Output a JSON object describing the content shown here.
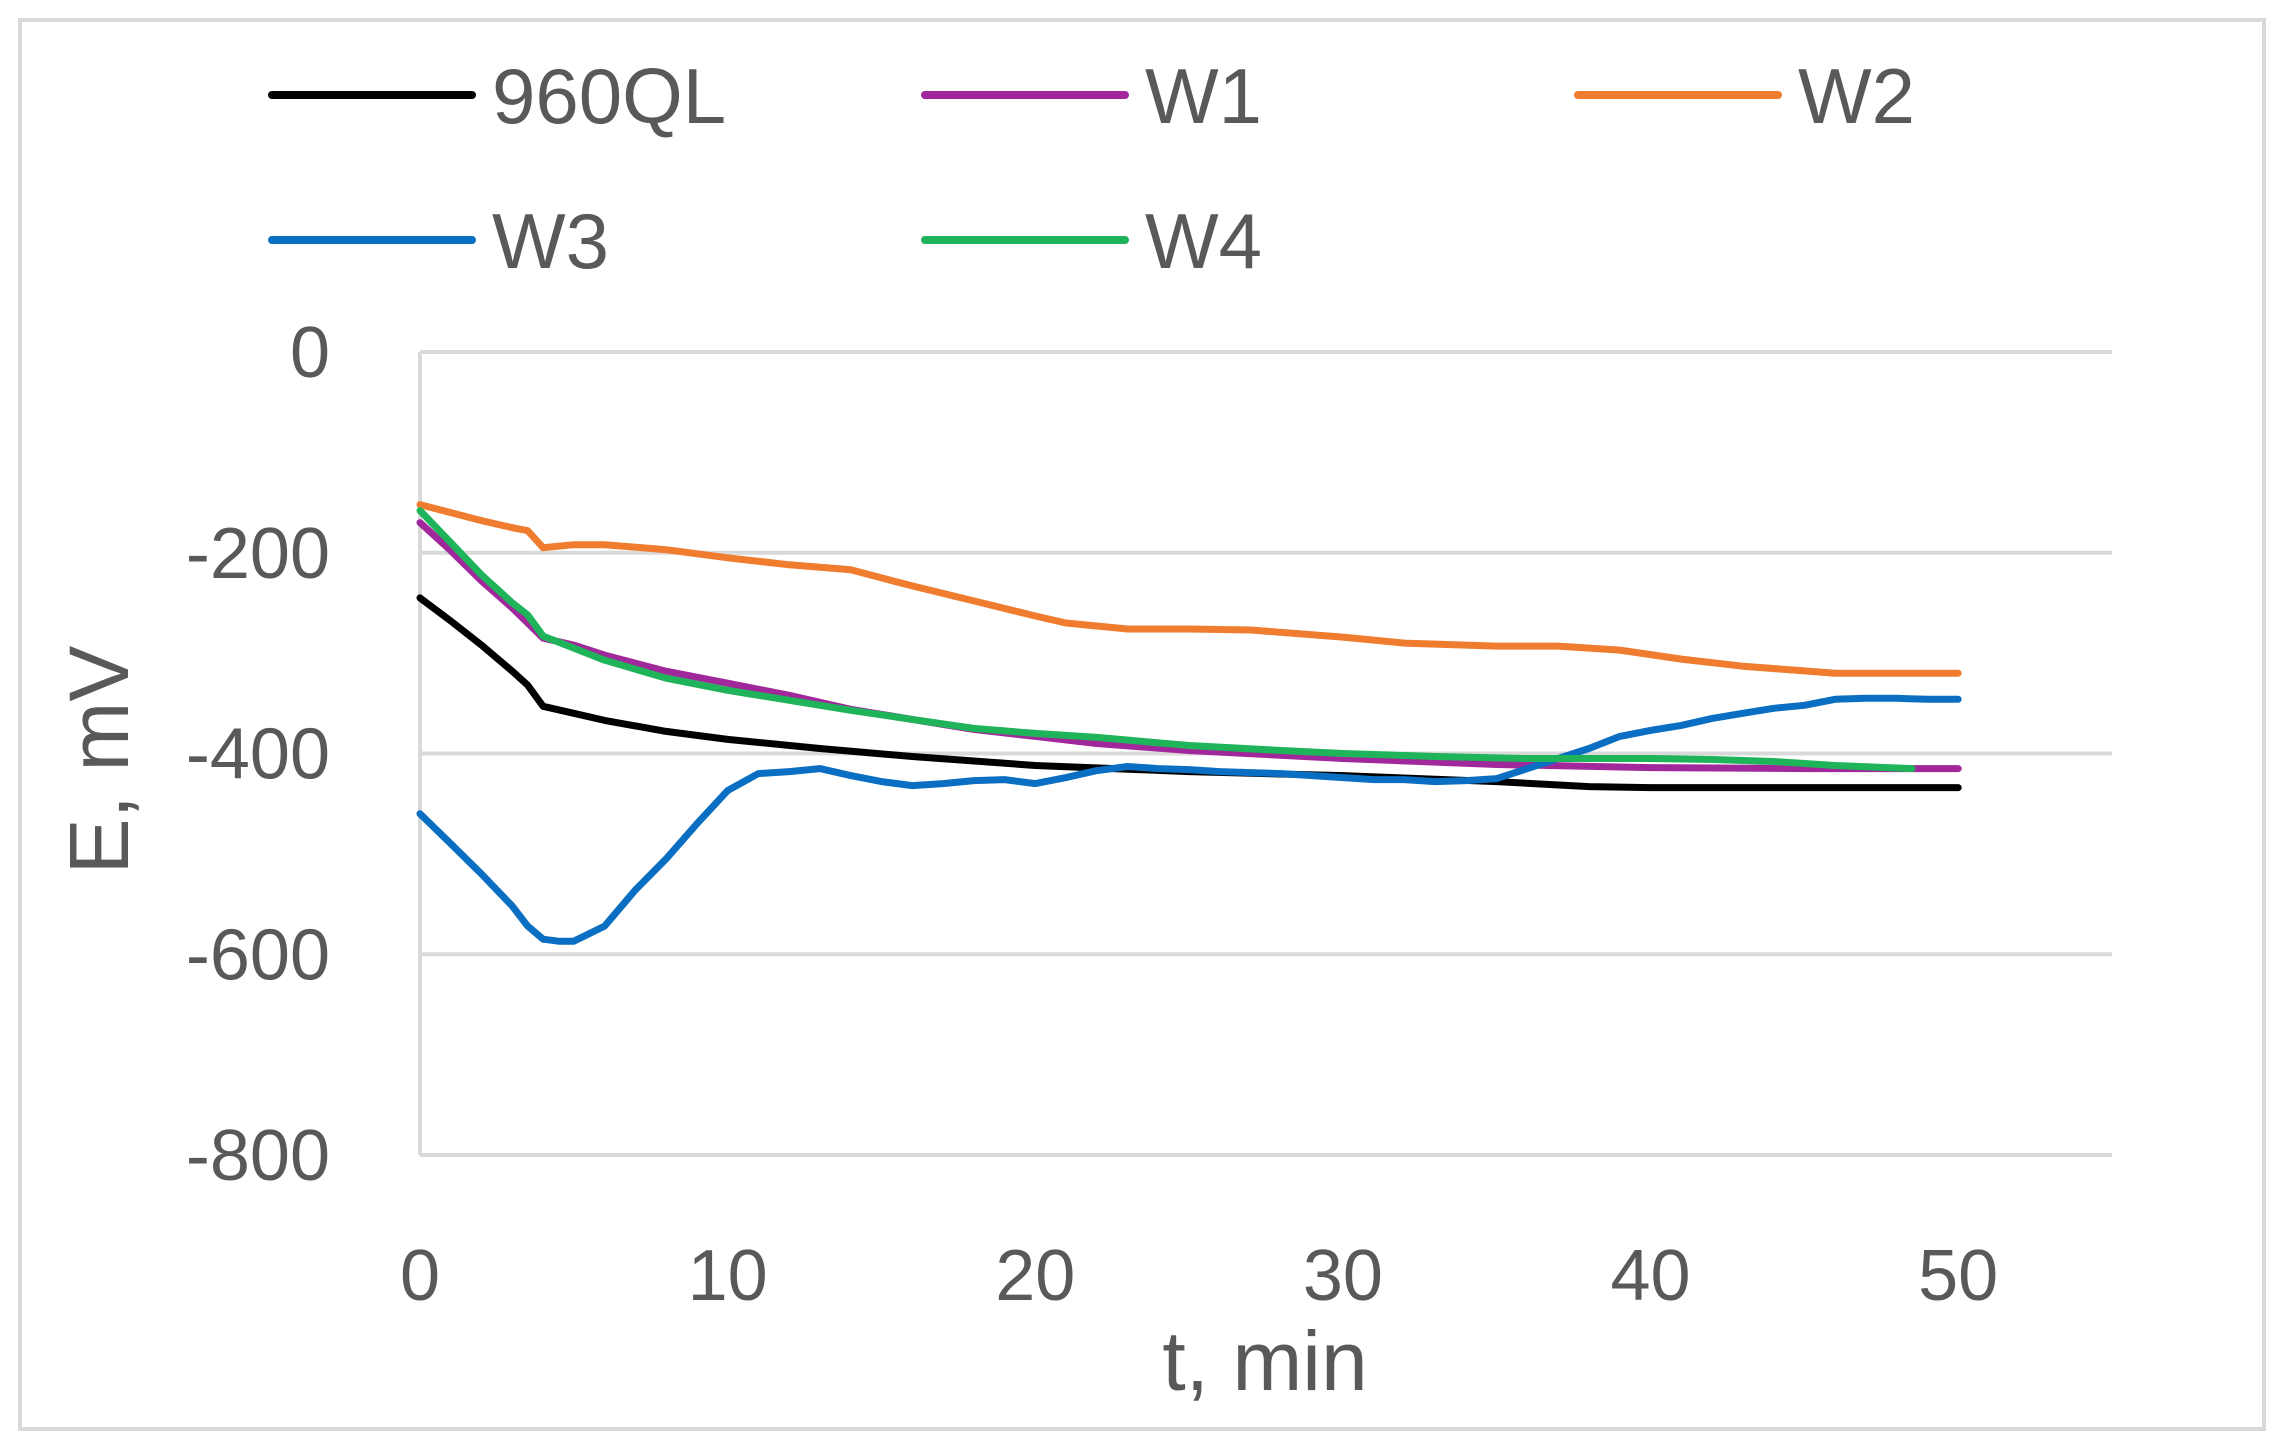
{
  "chart_data": {
    "type": "line",
    "title": "",
    "xlabel": "t, min",
    "ylabel": "E, mV",
    "xlim": [
      0,
      55
    ],
    "ylim": [
      -800,
      0
    ],
    "xticks": [
      0,
      10,
      20,
      30,
      40,
      50
    ],
    "yticks": [
      0,
      -200,
      -400,
      -600,
      -800
    ],
    "grid": "horizontal",
    "legend_position": "top",
    "series": [
      {
        "name": "960QL",
        "color": "#000000",
        "x": [
          0,
          1,
          2,
          3,
          3.5,
          4,
          5,
          6,
          8,
          10,
          13,
          16,
          20,
          25,
          30,
          35,
          38,
          40,
          45,
          50
        ],
        "y": [
          -245,
          -268,
          -292,
          -318,
          -332,
          -353,
          -360,
          -367,
          -378,
          -386,
          -395,
          -403,
          -412,
          -418,
          -422,
          -428,
          -433,
          -434,
          -434,
          -434
        ]
      },
      {
        "name": "W1",
        "color": "#a0289a",
        "x": [
          0,
          1,
          2,
          3,
          3.5,
          4,
          5,
          6,
          8,
          10,
          12,
          14,
          16,
          18,
          20,
          22,
          25,
          30,
          35,
          40,
          45,
          50
        ],
        "y": [
          -170,
          -198,
          -228,
          -255,
          -270,
          -285,
          -292,
          -302,
          -318,
          -330,
          -342,
          -356,
          -366,
          -376,
          -383,
          -390,
          -397,
          -405,
          -411,
          -414,
          -415,
          -415
        ]
      },
      {
        "name": "W2",
        "color": "#f07c30",
        "x": [
          0,
          1,
          2,
          3,
          3.5,
          4,
          5,
          6,
          8,
          10,
          12,
          14,
          16,
          18,
          20,
          21,
          23,
          25,
          27,
          30,
          32,
          35,
          37,
          39,
          41,
          43,
          46,
          48,
          50
        ],
        "y": [
          -152,
          -160,
          -168,
          -175,
          -178,
          -195,
          -192,
          -192,
          -197,
          -205,
          -212,
          -217,
          -233,
          -248,
          -263,
          -270,
          -276,
          -276,
          -277,
          -284,
          -290,
          -293,
          -293,
          -297,
          -306,
          -313,
          -320,
          -320,
          -320
        ]
      },
      {
        "name": "W3",
        "color": "#0a6fc2",
        "x": [
          0,
          1,
          2,
          3,
          3.5,
          4,
          4.5,
          5,
          6,
          7,
          8,
          9,
          10,
          11,
          12,
          13,
          14,
          15,
          16,
          17,
          18,
          19,
          20,
          21,
          22,
          23,
          24,
          25,
          26,
          27,
          28,
          29,
          30,
          31,
          32,
          33,
          34,
          35,
          36,
          37,
          38,
          39,
          40,
          41,
          42,
          43,
          44,
          45,
          46,
          47,
          48,
          49,
          50
        ],
        "y": [
          -460,
          -490,
          -520,
          -552,
          -572,
          -585,
          -587,
          -587,
          -572,
          -536,
          -505,
          -470,
          -437,
          -420,
          -418,
          -415,
          -422,
          -428,
          -432,
          -430,
          -427,
          -426,
          -430,
          -424,
          -417,
          -413,
          -415,
          -416,
          -418,
          -419,
          -420,
          -422,
          -424,
          -426,
          -426,
          -428,
          -427,
          -425,
          -415,
          -405,
          -395,
          -383,
          -377,
          -372,
          -365,
          -360,
          -355,
          -352,
          -346,
          -345,
          -345,
          -346,
          -346
        ]
      },
      {
        "name": "W4",
        "color": "#1fb35a",
        "x": [
          0,
          1,
          2,
          3,
          3.5,
          4,
          5,
          6,
          8,
          10,
          12,
          14,
          16,
          18,
          20,
          22,
          25,
          28,
          30,
          33,
          36,
          38,
          40,
          42,
          44,
          46,
          48.5
        ],
        "y": [
          -158,
          -190,
          -222,
          -250,
          -262,
          -283,
          -295,
          -307,
          -325,
          -337,
          -347,
          -357,
          -366,
          -375,
          -380,
          -384,
          -392,
          -397,
          -400,
          -403,
          -405,
          -405,
          -405,
          -406,
          -408,
          -412,
          -415
        ]
      }
    ]
  }
}
